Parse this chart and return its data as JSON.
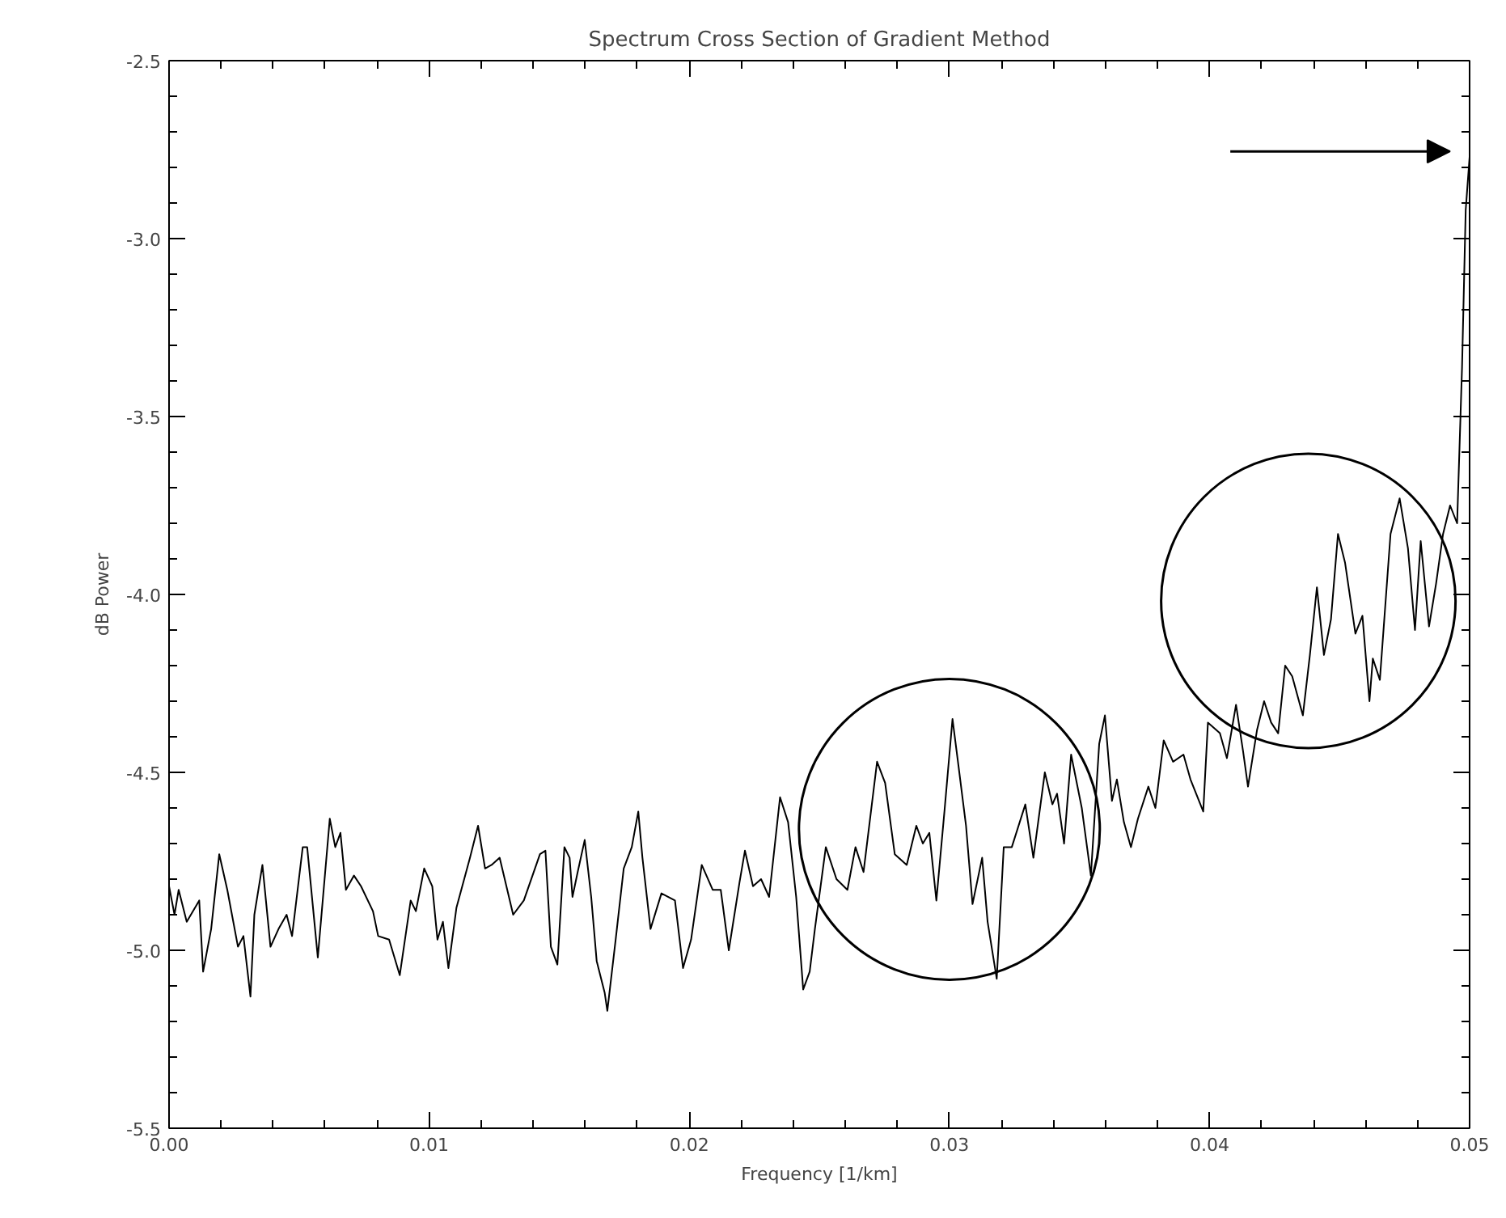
{
  "chart_data": {
    "type": "line",
    "title": "Spectrum Cross Section of Gradient Method",
    "xlabel": "Frequency [1/km]",
    "ylabel": "dB Power",
    "xlim": [
      0,
      0.05
    ],
    "ylim": [
      -5.5,
      -2.5
    ],
    "xticks": [
      {
        "value": 0,
        "label": "0.00"
      },
      {
        "value": 0.01,
        "label": "0.01"
      },
      {
        "value": 0.02,
        "label": "0.02"
      },
      {
        "value": 0.03,
        "label": "0.03"
      },
      {
        "value": 0.04,
        "label": "0.04"
      },
      {
        "value": 0.05,
        "label": "0.05"
      }
    ],
    "yticks": [
      {
        "value": -5.5,
        "label": "-5.5"
      },
      {
        "value": -5.0,
        "label": "-5.0"
      },
      {
        "value": -4.5,
        "label": "-4.5"
      },
      {
        "value": -4.0,
        "label": "-4.0"
      },
      {
        "value": -3.5,
        "label": "-3.5"
      },
      {
        "value": -3.0,
        "label": "-3.0"
      },
      {
        "value": -2.5,
        "label": "-2.5"
      }
    ],
    "grid": false,
    "series": [
      {
        "color": "#000000",
        "x": [
          0.0,
          0.00021,
          0.00037,
          0.00068,
          0.00116,
          0.00131,
          0.00162,
          0.00193,
          0.00224,
          0.00265,
          0.00286,
          0.00313,
          0.00328,
          0.00359,
          0.0039,
          0.00421,
          0.00452,
          0.00473,
          0.00514,
          0.00531,
          0.00572,
          0.00618,
          0.00639,
          0.00659,
          0.0068,
          0.00711,
          0.00738,
          0.00784,
          0.00804,
          0.00846,
          0.00887,
          0.00929,
          0.00949,
          0.00981,
          0.01012,
          0.01032,
          0.01053,
          0.01074,
          0.01105,
          0.01157,
          0.01188,
          0.01215,
          0.0124,
          0.01271,
          0.01323,
          0.01364,
          0.01426,
          0.01447,
          0.01468,
          0.01493,
          0.0152,
          0.0154,
          0.01551,
          0.01571,
          0.01598,
          0.01623,
          0.01644,
          0.01675,
          0.01685,
          0.01717,
          0.01748,
          0.01779,
          0.01804,
          0.0182,
          0.01851,
          0.01893,
          0.01945,
          0.01976,
          0.02007,
          0.02048,
          0.0209,
          0.02121,
          0.02152,
          0.02193,
          0.02214,
          0.02245,
          0.02276,
          0.02307,
          0.02349,
          0.0238,
          0.02411,
          0.02438,
          0.02463,
          0.02483,
          0.02525,
          0.02566,
          0.02608,
          0.02639,
          0.0267,
          0.02722,
          0.02753,
          0.0279,
          0.02836,
          0.02873,
          0.02898,
          0.02923,
          0.0295,
          0.02981,
          0.03012,
          0.03033,
          0.03064,
          0.03089,
          0.03126,
          0.03147,
          0.03182,
          0.03209,
          0.0324,
          0.03292,
          0.03323,
          0.03367,
          0.03396,
          0.03414,
          0.03441,
          0.03468,
          0.03509,
          0.03544,
          0.03576,
          0.03598,
          0.03625,
          0.03644,
          0.03671,
          0.03698,
          0.03725,
          0.03765,
          0.03792,
          0.03824,
          0.0386,
          0.039,
          0.03927,
          0.03976,
          0.03994,
          0.0404,
          0.04067,
          0.04102,
          0.04129,
          0.04148,
          0.04183,
          0.0421,
          0.04237,
          0.04264,
          0.04291,
          0.04318,
          0.04359,
          0.04386,
          0.04413,
          0.0444,
          0.04467,
          0.04494,
          0.04521,
          0.04561,
          0.04588,
          0.04615,
          0.04628,
          0.04655,
          0.04696,
          0.04731,
          0.04763,
          0.0479,
          0.04812,
          0.04844,
          0.04871,
          0.04898,
          0.04925,
          0.04952,
          0.04971,
          0.04985,
          0.05
        ],
        "values": [
          -4.82,
          -4.9,
          -4.83,
          -4.92,
          -4.86,
          -5.06,
          -4.94,
          -4.73,
          -4.83,
          -4.99,
          -4.96,
          -5.13,
          -4.9,
          -4.76,
          -4.99,
          -4.94,
          -4.9,
          -4.96,
          -4.71,
          -4.71,
          -5.02,
          -4.63,
          -4.71,
          -4.67,
          -4.83,
          -4.79,
          -4.82,
          -4.89,
          -4.96,
          -4.97,
          -5.07,
          -4.86,
          -4.89,
          -4.77,
          -4.82,
          -4.97,
          -4.92,
          -5.05,
          -4.88,
          -4.74,
          -4.65,
          -4.77,
          -4.76,
          -4.74,
          -4.9,
          -4.86,
          -4.73,
          -4.72,
          -4.99,
          -5.04,
          -4.71,
          -4.74,
          -4.85,
          -4.78,
          -4.69,
          -4.85,
          -5.03,
          -5.12,
          -5.17,
          -4.97,
          -4.77,
          -4.71,
          -4.61,
          -4.74,
          -4.94,
          -4.84,
          -4.86,
          -5.05,
          -4.97,
          -4.76,
          -4.83,
          -4.83,
          -5.0,
          -4.81,
          -4.72,
          -4.82,
          -4.8,
          -4.85,
          -4.57,
          -4.64,
          -4.85,
          -5.11,
          -5.06,
          -4.94,
          -4.71,
          -4.8,
          -4.83,
          -4.71,
          -4.78,
          -4.47,
          -4.53,
          -4.73,
          -4.76,
          -4.65,
          -4.7,
          -4.67,
          -4.86,
          -4.61,
          -4.35,
          -4.47,
          -4.65,
          -4.87,
          -4.74,
          -4.92,
          -5.08,
          -4.71,
          -4.71,
          -4.59,
          -4.74,
          -4.5,
          -4.59,
          -4.56,
          -4.7,
          -4.45,
          -4.6,
          -4.79,
          -4.42,
          -4.34,
          -4.58,
          -4.52,
          -4.64,
          -4.71,
          -4.63,
          -4.54,
          -4.6,
          -4.41,
          -4.47,
          -4.45,
          -4.52,
          -4.61,
          -4.36,
          -4.39,
          -4.46,
          -4.31,
          -4.44,
          -4.54,
          -4.38,
          -4.3,
          -4.36,
          -4.39,
          -4.2,
          -4.23,
          -4.34,
          -4.17,
          -3.98,
          -4.17,
          -4.07,
          -3.83,
          -3.91,
          -4.11,
          -4.06,
          -4.3,
          -4.18,
          -4.24,
          -3.83,
          -3.73,
          -3.87,
          -4.1,
          -3.85,
          -4.09,
          -3.97,
          -3.83,
          -3.75,
          -3.8,
          -3.36,
          -2.92,
          -2.77
        ]
      }
    ]
  }
}
